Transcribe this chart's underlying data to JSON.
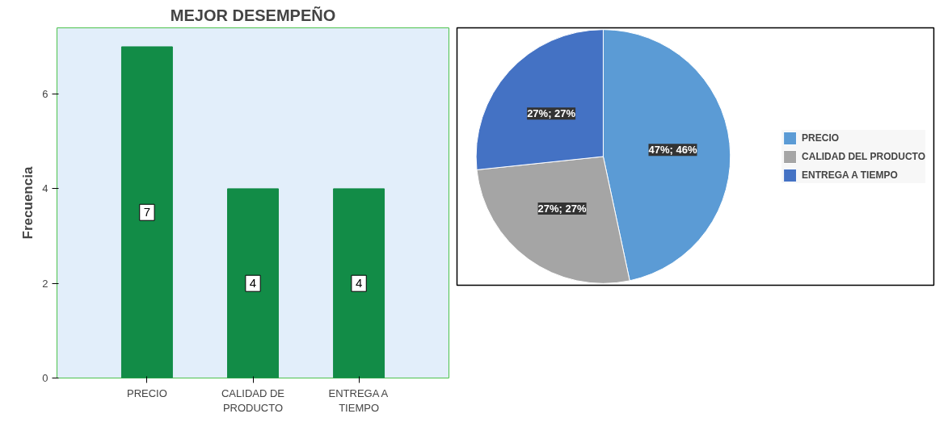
{
  "chart_data": [
    {
      "type": "bar",
      "title": "MEJOR DESEMPEÑO",
      "ylabel": "Frecuencia",
      "categories": [
        "PRECIO",
        "CALIDAD DE\nPRODUCTO",
        "ENTREGA A\nTIEMPO"
      ],
      "values": [
        7,
        4,
        4
      ],
      "color": "#128c47",
      "ylim": [
        0,
        7.4
      ],
      "yticks": [
        0,
        2,
        4,
        6
      ],
      "grid": false,
      "data_labels": true
    },
    {
      "type": "pie",
      "categories": [
        "PRECIO",
        "CALIDAD DEL PRODUCTO",
        "ENTREGA A TIEMPO"
      ],
      "values": [
        46.66,
        26.67,
        26.67
      ],
      "colors": [
        "#5b9bd5",
        "#a5a5a5",
        "#4472c4"
      ],
      "value_labels": [
        "47%; 46%",
        "27%; 27%",
        "27%; 27%"
      ],
      "legend": "right"
    }
  ]
}
